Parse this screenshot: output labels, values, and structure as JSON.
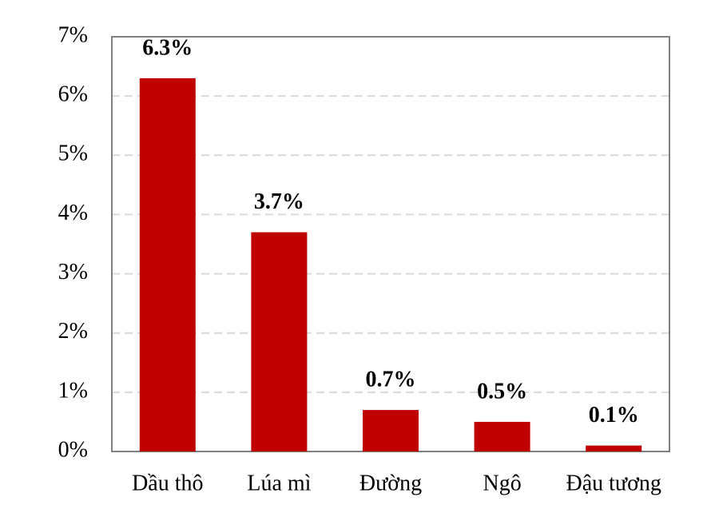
{
  "chart_data": {
    "type": "bar",
    "categories": [
      "Dầu thô",
      "Lúa mì",
      "Đường",
      "Ngô",
      "Đậu tương"
    ],
    "values": [
      6.3,
      3.7,
      0.7,
      0.5,
      0.1
    ],
    "value_labels": [
      "6.3%",
      "3.7%",
      "0.7%",
      "0.5%",
      "0.1%"
    ],
    "color": "#c00000",
    "ylim": [
      0,
      7
    ],
    "yticks": [
      {
        "value": 0,
        "label": "0%"
      },
      {
        "value": 1,
        "label": "1%"
      },
      {
        "value": 2,
        "label": "2%"
      },
      {
        "value": 3,
        "label": "3%"
      },
      {
        "value": 4,
        "label": "4%"
      },
      {
        "value": 5,
        "label": "5%"
      },
      {
        "value": 6,
        "label": "6%"
      },
      {
        "value": 7,
        "label": "7%"
      }
    ],
    "grid": true
  }
}
